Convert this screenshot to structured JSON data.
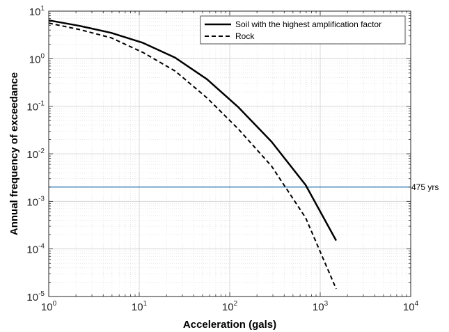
{
  "chart_data": {
    "type": "line",
    "xlabel": "Acceleration (gals)",
    "ylabel": "Annual  frequency  of  exceedance",
    "xscale": "log",
    "yscale": "log",
    "xlim": [
      1,
      10000
    ],
    "ylim": [
      1e-05,
      10
    ],
    "grid": true,
    "legend_position": "top-right",
    "x_ticks": [
      {
        "base": "10",
        "exp": "0",
        "value": 1
      },
      {
        "base": "10",
        "exp": "1",
        "value": 10
      },
      {
        "base": "10",
        "exp": "2",
        "value": 100
      },
      {
        "base": "10",
        "exp": "3",
        "value": 1000
      },
      {
        "base": "10",
        "exp": "4",
        "value": 10000
      }
    ],
    "y_ticks": [
      {
        "base": "10",
        "exp": "-5",
        "value": 1e-05
      },
      {
        "base": "10",
        "exp": "-4",
        "value": 0.0001
      },
      {
        "base": "10",
        "exp": "-3",
        "value": 0.001
      },
      {
        "base": "10",
        "exp": "-2",
        "value": 0.01
      },
      {
        "base": "10",
        "exp": "-1",
        "value": 0.1
      },
      {
        "base": "10",
        "exp": "0",
        "value": 1
      },
      {
        "base": "10",
        "exp": "1",
        "value": 10
      }
    ],
    "series": [
      {
        "name": "Soil with the highest amplification factor",
        "style": "solid",
        "color": "#000000",
        "x": [
          1,
          2.2,
          4.9,
          11,
          25,
          56,
          125,
          290,
          690,
          1500
        ],
        "y": [
          6.4,
          4.9,
          3.5,
          2.15,
          1.05,
          0.37,
          0.095,
          0.018,
          0.0022,
          0.00015
        ]
      },
      {
        "name": "Rock",
        "style": "dashed",
        "color": "#000000",
        "x": [
          1,
          2.2,
          4.9,
          11,
          25,
          56,
          125,
          290,
          690,
          1500
        ],
        "y": [
          5.6,
          4.1,
          2.75,
          1.35,
          0.55,
          0.15,
          0.033,
          0.0055,
          0.00045,
          1.45e-05
        ]
      }
    ],
    "reference_lines": [
      {
        "y": 0.002,
        "label": "475 yrs",
        "color": "#1f6fa8"
      }
    ]
  }
}
